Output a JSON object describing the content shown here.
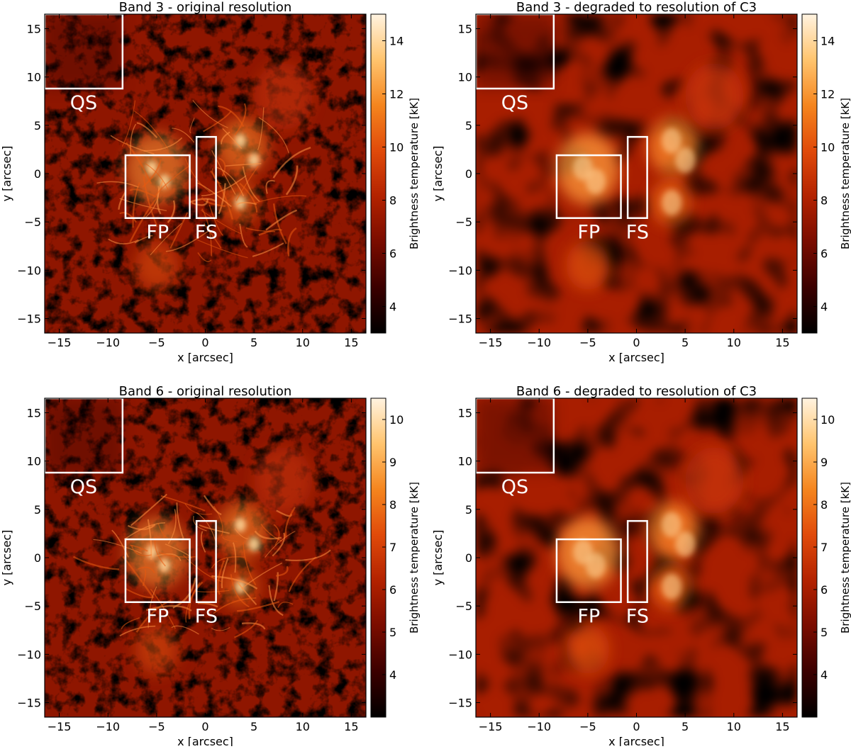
{
  "figure": {
    "colorbar_label": "Brightness temperature [kK]",
    "region_labels": [
      "QS",
      "FP",
      "FS"
    ]
  },
  "colors": {
    "map_stops": [
      "#000000",
      "#3b0000",
      "#7a0c00",
      "#b32200",
      "#e04a0a",
      "#f5851e",
      "#ffc46e",
      "#fff3e0"
    ],
    "box": "#ffffff"
  },
  "chart_data": [
    {
      "type": "heatmap",
      "title": "Band 3 - original resolution",
      "xlabel": "x [arcsec]",
      "ylabel": "y [arcsec]",
      "xlim": [
        -16.5,
        16.5
      ],
      "ylim": [
        -16.5,
        16.5
      ],
      "xticks": [
        -15,
        -10,
        -5,
        0,
        5,
        10,
        15
      ],
      "yticks": [
        -15,
        -10,
        -5,
        0,
        5,
        10,
        15
      ],
      "colorbar": {
        "label": "Brightness temperature [kK]",
        "range": [
          3,
          15
        ],
        "ticks": [
          4,
          6,
          8,
          10,
          12,
          14
        ]
      },
      "regions": [
        {
          "label": "QS",
          "x": [
            -16.5,
            -8.5
          ],
          "y": [
            8.8,
            16.5
          ]
        },
        {
          "label": "FP",
          "x": [
            -8.2,
            -1.6
          ],
          "y": [
            -4.6,
            1.9
          ]
        },
        {
          "label": "FS",
          "x": [
            -0.9,
            1.1
          ],
          "y": [
            -4.6,
            3.8
          ]
        }
      ],
      "resolution": "original"
    },
    {
      "type": "heatmap",
      "title": "Band 3 - degraded to resolution of C3",
      "xlabel": "x [arcsec]",
      "ylabel": "y [arcsec]",
      "xlim": [
        -16.5,
        16.5
      ],
      "ylim": [
        -16.5,
        16.5
      ],
      "xticks": [
        -15,
        -10,
        -5,
        0,
        5,
        10,
        15
      ],
      "yticks": [
        -15,
        -10,
        -5,
        0,
        5,
        10,
        15
      ],
      "colorbar": {
        "label": "Brightness temperature [kK]",
        "range": [
          3,
          15
        ],
        "ticks": [
          4,
          6,
          8,
          10,
          12,
          14
        ]
      },
      "regions": [
        {
          "label": "QS",
          "x": [
            -16.5,
            -8.5
          ],
          "y": [
            8.8,
            16.5
          ]
        },
        {
          "label": "FP",
          "x": [
            -8.2,
            -1.6
          ],
          "y": [
            -4.6,
            1.9
          ]
        },
        {
          "label": "FS",
          "x": [
            -0.9,
            1.1
          ],
          "y": [
            -4.6,
            3.8
          ]
        }
      ],
      "resolution": "degraded"
    },
    {
      "type": "heatmap",
      "title": "Band 6 - original resolution",
      "xlabel": "x [arcsec]",
      "ylabel": "y [arcsec]",
      "xlim": [
        -16.5,
        16.5
      ],
      "ylim": [
        -16.5,
        16.5
      ],
      "xticks": [
        -15,
        -10,
        -5,
        0,
        5,
        10,
        15
      ],
      "yticks": [
        -15,
        -10,
        -5,
        0,
        5,
        10,
        15
      ],
      "colorbar": {
        "label": "Brightness temperature [kK]",
        "range": [
          3.0,
          10.5
        ],
        "ticks": [
          4,
          5,
          6,
          7,
          8,
          9,
          10
        ]
      },
      "regions": [
        {
          "label": "QS",
          "x": [
            -16.5,
            -8.5
          ],
          "y": [
            8.8,
            16.5
          ]
        },
        {
          "label": "FP",
          "x": [
            -8.2,
            -1.6
          ],
          "y": [
            -4.6,
            1.9
          ]
        },
        {
          "label": "FS",
          "x": [
            -0.9,
            1.1
          ],
          "y": [
            -4.6,
            3.8
          ]
        }
      ],
      "resolution": "original"
    },
    {
      "type": "heatmap",
      "title": "Band 6 - degraded to resolution of C3",
      "xlabel": "x [arcsec]",
      "ylabel": "y [arcsec]",
      "xlim": [
        -16.5,
        16.5
      ],
      "ylim": [
        -16.5,
        16.5
      ],
      "xticks": [
        -15,
        -10,
        -5,
        0,
        5,
        10,
        15
      ],
      "yticks": [
        -15,
        -10,
        -5,
        0,
        5,
        10,
        15
      ],
      "colorbar": {
        "label": "Brightness temperature [kK]",
        "range": [
          3.0,
          10.5
        ],
        "ticks": [
          4,
          5,
          6,
          7,
          8,
          9,
          10
        ]
      },
      "regions": [
        {
          "label": "QS",
          "x": [
            -16.5,
            -8.5
          ],
          "y": [
            8.8,
            16.5
          ]
        },
        {
          "label": "FP",
          "x": [
            -8.2,
            -1.6
          ],
          "y": [
            -4.6,
            1.9
          ]
        },
        {
          "label": "FS",
          "x": [
            -0.9,
            1.1
          ],
          "y": [
            -4.6,
            3.8
          ]
        }
      ],
      "resolution": "degraded"
    }
  ]
}
